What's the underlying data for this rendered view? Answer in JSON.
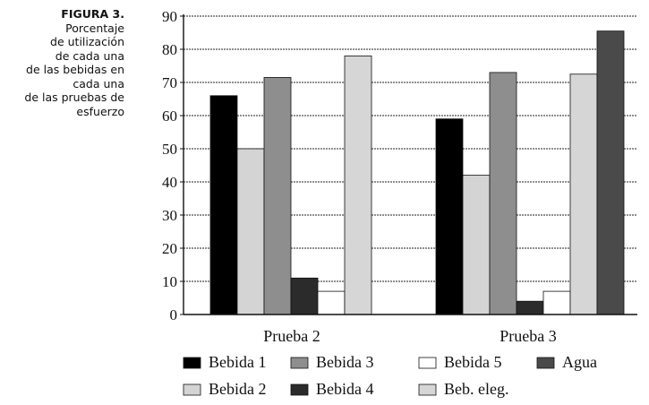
{
  "caption": {
    "label": "FIGURA 3.",
    "text": "Porcentaje\nde utilización\nde cada una\nde las bebidas en\ncada una\nde las pruebas de\nesfuerzo"
  },
  "chart_data": {
    "type": "bar",
    "categories": [
      "Prueba 2",
      "Prueba 3"
    ],
    "ylim": [
      0,
      90
    ],
    "yticks": [
      0,
      10,
      20,
      30,
      40,
      50,
      60,
      70,
      80,
      90
    ],
    "grid": true,
    "legend_position": "bottom",
    "series": [
      {
        "name": "Bebida 1",
        "values": [
          66,
          59
        ],
        "color": "#000000"
      },
      {
        "name": "Bebida 2",
        "values": [
          50,
          42
        ],
        "color": "#d4d4d4"
      },
      {
        "name": "Bebida 3",
        "values": [
          71.5,
          73
        ],
        "color": "#8e8e8e"
      },
      {
        "name": "Bebida 4",
        "values": [
          11,
          4
        ],
        "color": "#2b2b2b"
      },
      {
        "name": "Bebida 5",
        "values": [
          7,
          7
        ],
        "color": "#ffffff"
      },
      {
        "name": "Beb. eleg.",
        "values": [
          78,
          72.5
        ],
        "color": "#d6d6d6"
      },
      {
        "name": "Agua",
        "values": [
          null,
          85.5
        ],
        "color": "#4a4a4a"
      }
    ],
    "legend_order": [
      "Bebida 1",
      "Bebida 3",
      "Bebida 5",
      "Agua",
      "Bebida 2",
      "Bebida 4",
      "Beb. eleg."
    ]
  }
}
